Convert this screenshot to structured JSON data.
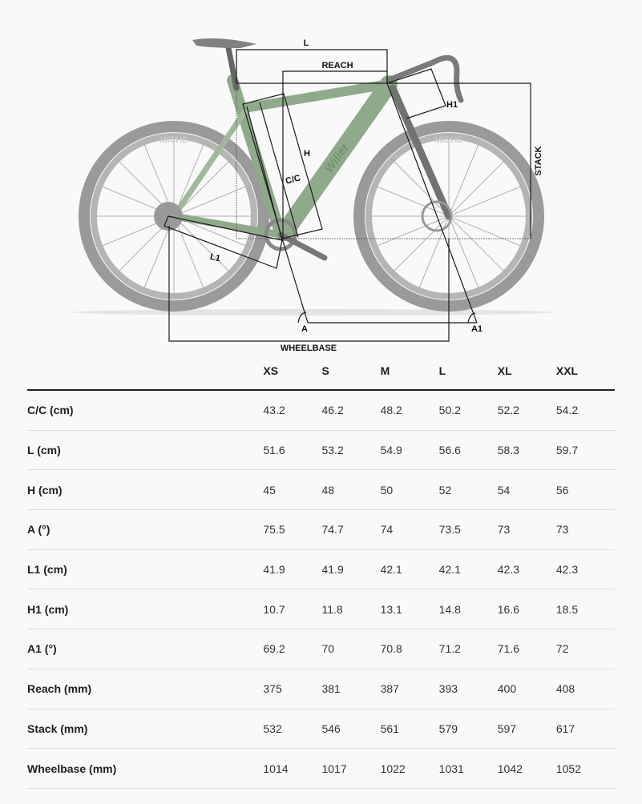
{
  "diagram": {
    "labels": {
      "l": "L",
      "reach": "REACH",
      "h1": "H1",
      "stack": "STACK",
      "h": "H",
      "cc": "C/C",
      "l1": "L1",
      "a": "A",
      "a1": "A1",
      "wheelbase": "WHEELBASE"
    },
    "tire_brand": "MICHE",
    "frame_brand": "Wilier",
    "colors": {
      "frame": "#8faa8a",
      "wheel": "#8e8e8e",
      "lines": "#1a1a1a"
    }
  },
  "table": {
    "sizes": [
      "XS",
      "S",
      "M",
      "L",
      "XL",
      "XXL"
    ],
    "rows": [
      {
        "label": "C/C (cm)",
        "values": [
          "43.2",
          "46.2",
          "48.2",
          "50.2",
          "52.2",
          "54.2"
        ]
      },
      {
        "label": "L (cm)",
        "values": [
          "51.6",
          "53.2",
          "54.9",
          "56.6",
          "58.3",
          "59.7"
        ]
      },
      {
        "label": "H (cm)",
        "values": [
          "45",
          "48",
          "50",
          "52",
          "54",
          "56"
        ]
      },
      {
        "label": "A (°)",
        "values": [
          "75.5",
          "74.7",
          "74",
          "73.5",
          "73",
          "73"
        ]
      },
      {
        "label": "L1 (cm)",
        "values": [
          "41.9",
          "41.9",
          "42.1",
          "42.1",
          "42.3",
          "42.3"
        ]
      },
      {
        "label": "H1 (cm)",
        "values": [
          "10.7",
          "11.8",
          "13.1",
          "14.8",
          "16.6",
          "18.5"
        ]
      },
      {
        "label": "A1 (°)",
        "values": [
          "69.2",
          "70",
          "70.8",
          "71.2",
          "71.6",
          "72"
        ]
      },
      {
        "label": "Reach (mm)",
        "values": [
          "375",
          "381",
          "387",
          "393",
          "400",
          "408"
        ]
      },
      {
        "label": "Stack (mm)",
        "values": [
          "532",
          "546",
          "561",
          "579",
          "597",
          "617"
        ]
      },
      {
        "label": "Wheelbase (mm)",
        "values": [
          "1014",
          "1017",
          "1022",
          "1031",
          "1042",
          "1052"
        ]
      }
    ]
  }
}
